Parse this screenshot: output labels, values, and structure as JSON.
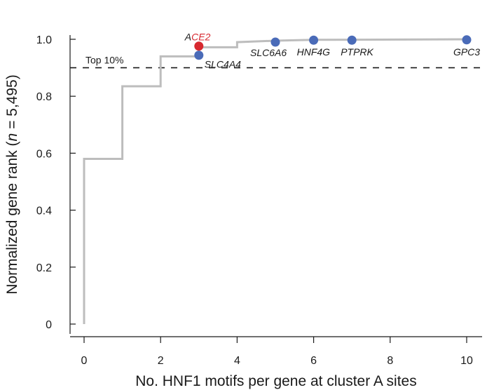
{
  "chart_data": {
    "type": "line",
    "xlabel": "No. HNF1 motifs per gene at cluster A sites",
    "ylabel_parts": [
      "Normalized gene rank (",
      "n",
      " = 5,495)"
    ],
    "xlim": [
      0,
      10
    ],
    "ylim": [
      0,
      1.0
    ],
    "x_ticks": [
      0,
      2,
      4,
      6,
      8,
      10
    ],
    "x_tick_labels": [
      "0",
      "2",
      "4",
      "6",
      "8",
      "10"
    ],
    "y_ticks": [
      0,
      0.2,
      0.4,
      0.6,
      0.8,
      1.0
    ],
    "y_tick_labels": [
      "0",
      "0.2",
      "0.4",
      "0.6",
      "0.8",
      "1.0"
    ],
    "grid": false,
    "step_series": {
      "color": "#bdbdbd",
      "x": [
        0,
        0,
        1,
        1,
        2,
        2,
        3,
        3,
        4,
        4,
        5,
        6,
        10
      ],
      "y": [
        0,
        0.58,
        0.58,
        0.835,
        0.835,
        0.94,
        0.94,
        0.972,
        0.972,
        0.99,
        0.995,
        0.998,
        1.0
      ]
    },
    "reference_line": {
      "y": 0.9,
      "label": "Top 10%",
      "color": "#1a1a1a"
    },
    "points": [
      {
        "x": 3,
        "y": 0.976,
        "color": "#d7282f",
        "label_prefix": "A",
        "label_main": "CE2",
        "label_main_color": "#d7282f"
      },
      {
        "x": 3,
        "y": 0.944,
        "color": "#4a6bb8",
        "label_prefix": "",
        "label_main": "SLC4A4",
        "label_main_color": "#1a1a1a"
      },
      {
        "x": 5,
        "y": 0.99,
        "color": "#4a6bb8",
        "label_prefix": "",
        "label_main": "SLC6A6",
        "label_main_color": "#1a1a1a"
      },
      {
        "x": 6,
        "y": 0.997,
        "color": "#4a6bb8",
        "label_prefix": "",
        "label_main": "HNF4G",
        "label_main_color": "#1a1a1a"
      },
      {
        "x": 7,
        "y": 0.997,
        "color": "#4a6bb8",
        "label_prefix": "",
        "label_main": "PTPRK",
        "label_main_color": "#1a1a1a"
      },
      {
        "x": 10,
        "y": 0.998,
        "color": "#4a6bb8",
        "label_prefix": "",
        "label_main": "GPC3",
        "label_main_color": "#1a1a1a"
      }
    ]
  }
}
